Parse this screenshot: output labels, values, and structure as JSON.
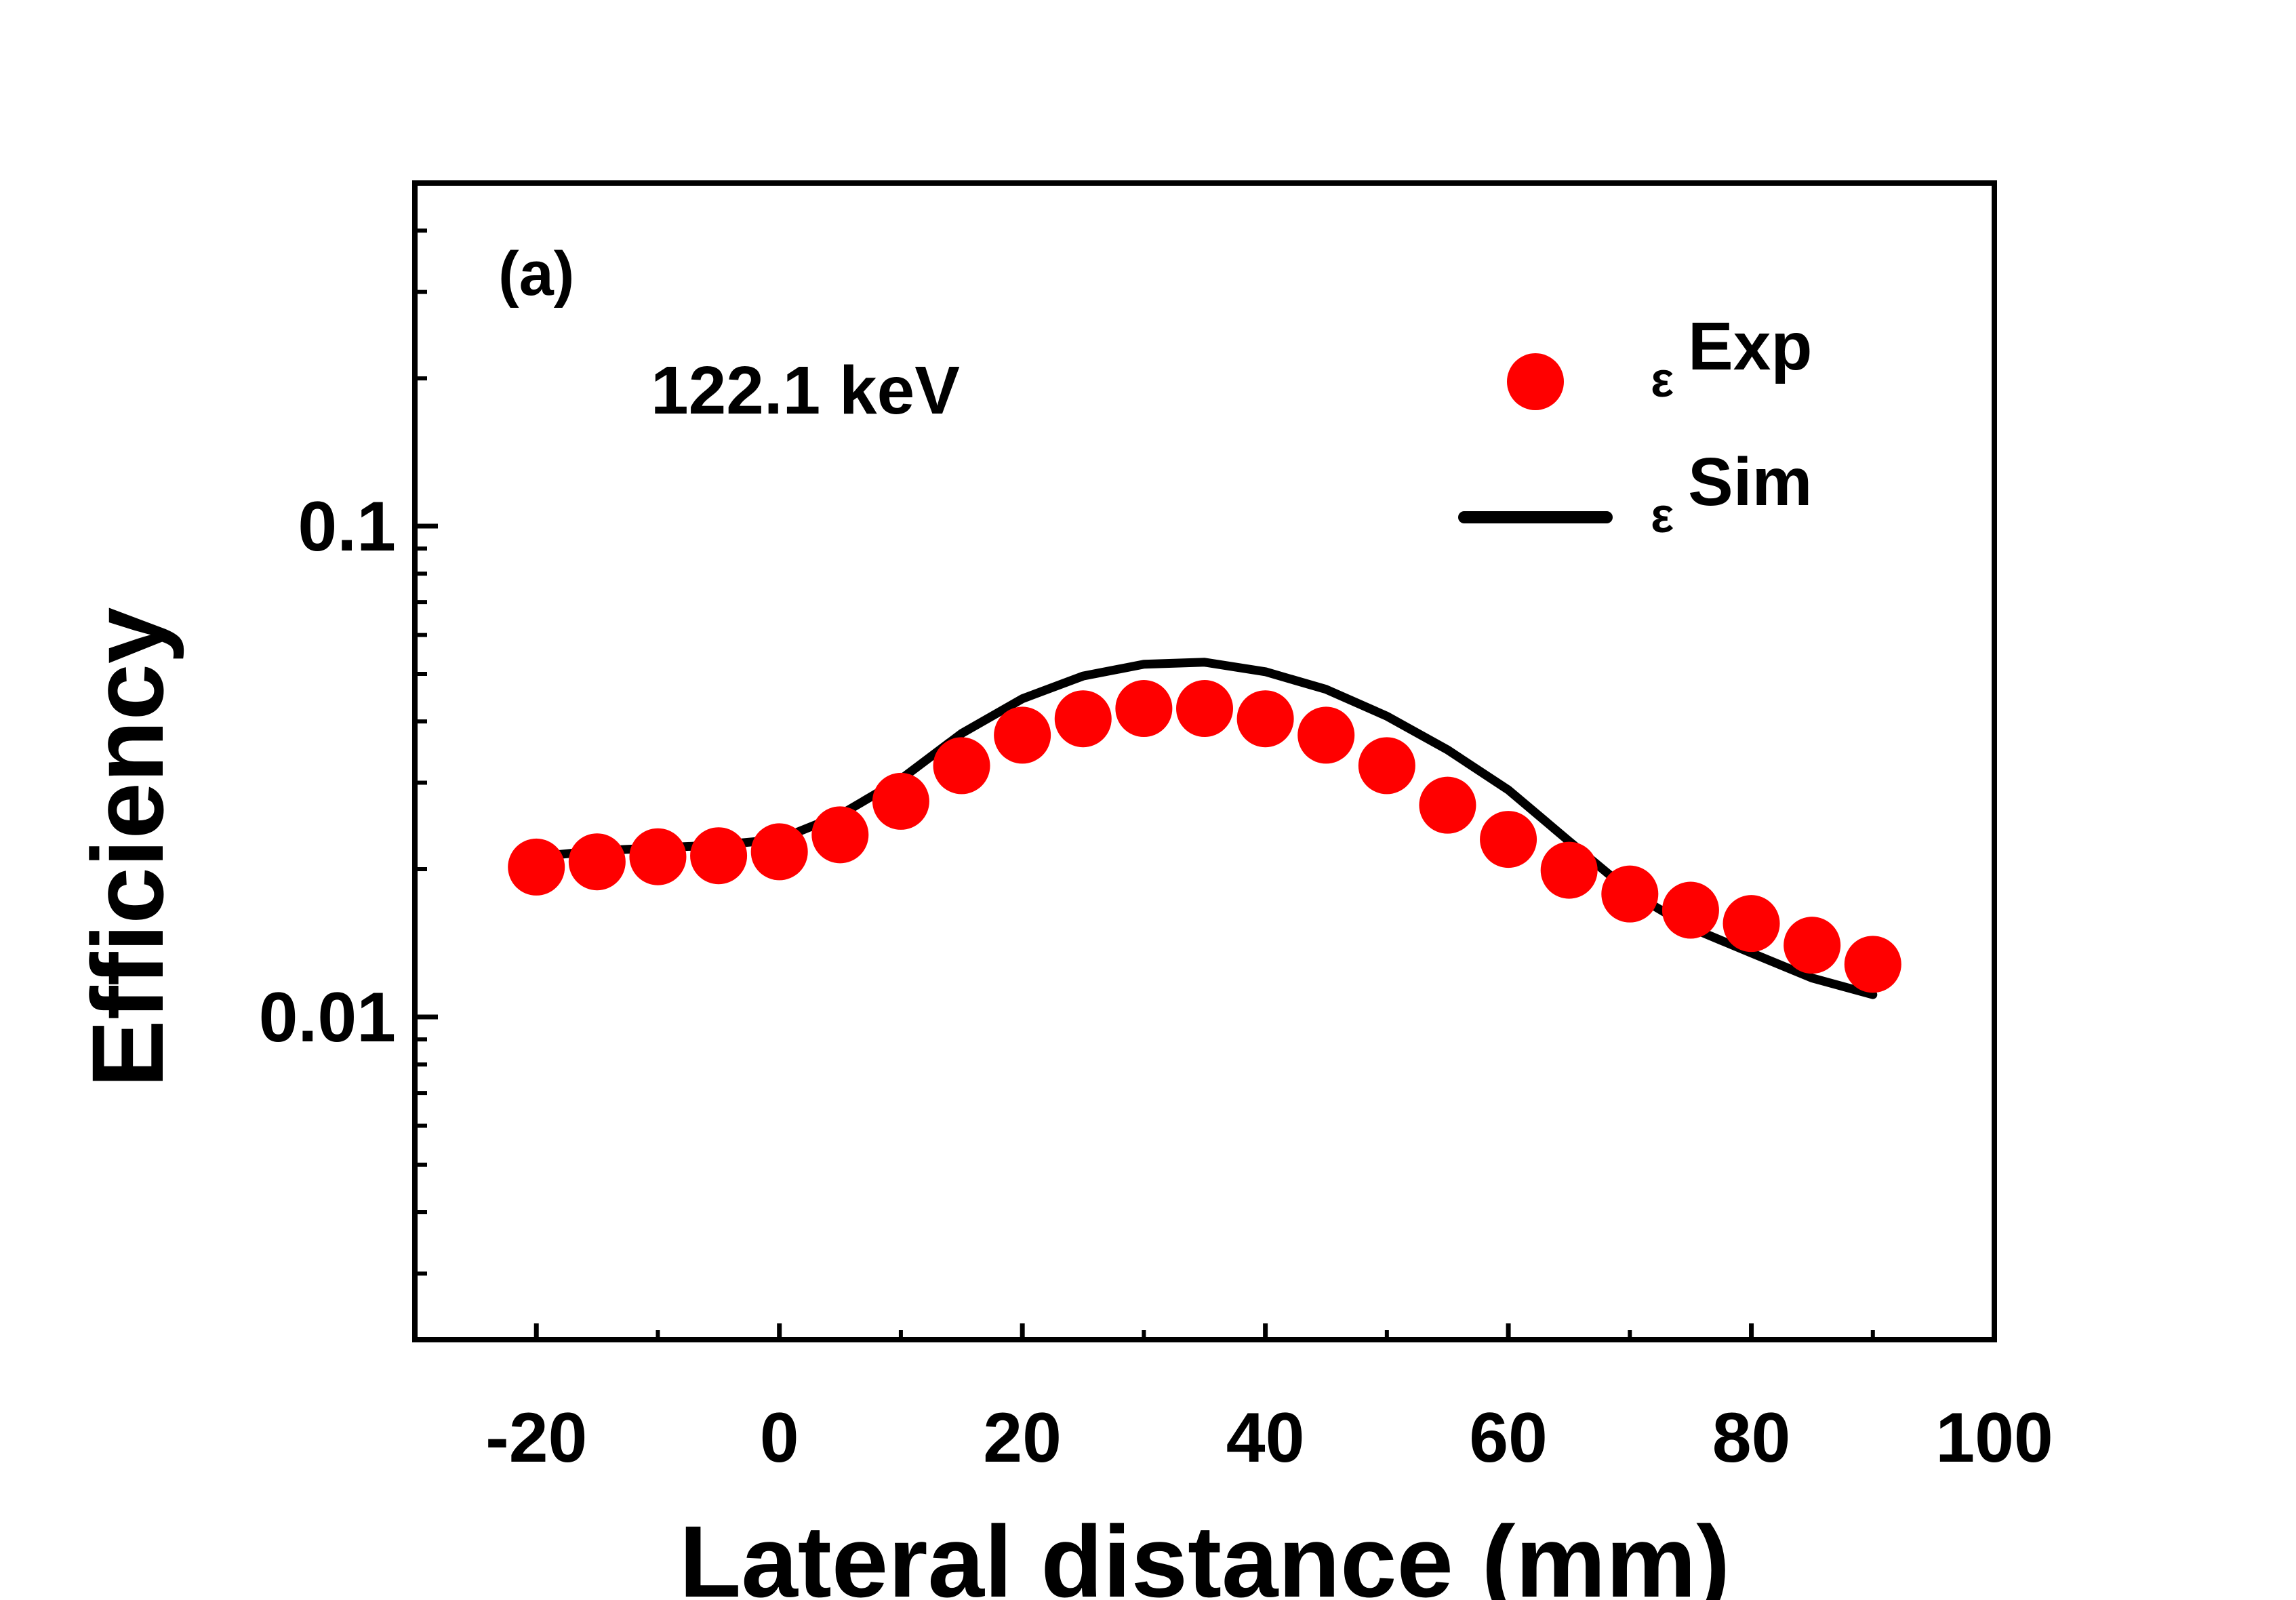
{
  "chart_data": {
    "type": "scatter",
    "panel_label": "(a)",
    "annotation": "122.1 keV",
    "xlabel": "Lateral distance (mm)",
    "ylabel": "Efficiency",
    "xlim": [
      -30,
      100
    ],
    "ylim": [
      0.0022,
      0.5
    ],
    "yscale": "log",
    "x_ticks": [
      -20,
      0,
      20,
      40,
      60,
      80,
      100
    ],
    "x_tick_labels": [
      "-20",
      "0",
      "20",
      "40",
      "60",
      "80",
      "100"
    ],
    "y_ticks": [
      0.01,
      0.1
    ],
    "y_tick_labels": [
      "0.01",
      "0.1"
    ],
    "legend_position": "top-right",
    "series": [
      {
        "name": "εExp",
        "legend_base": "ε",
        "legend_sup": "Exp",
        "kind": "markers",
        "color": "#ff0000",
        "x": [
          -20,
          -15,
          -10,
          -5,
          0,
          5,
          10,
          15,
          20,
          25,
          30,
          35,
          40,
          45,
          50,
          55,
          60,
          65,
          70,
          75,
          80,
          85,
          90
        ],
        "y": [
          0.0202,
          0.0207,
          0.0212,
          0.0213,
          0.0217,
          0.0235,
          0.0275,
          0.0325,
          0.0375,
          0.0405,
          0.0425,
          0.0425,
          0.0405,
          0.0375,
          0.0325,
          0.027,
          0.023,
          0.0199,
          0.0178,
          0.0165,
          0.0155,
          0.014,
          0.0128
        ]
      },
      {
        "name": "εSim",
        "legend_base": "ε",
        "legend_sup": "Sim",
        "kind": "line",
        "color": "#000000",
        "x": [
          -20,
          -15,
          -10,
          -5,
          0,
          5,
          10,
          15,
          20,
          25,
          30,
          35,
          40,
          45,
          50,
          55,
          60,
          65,
          70,
          75,
          80,
          85,
          90
        ],
        "y": [
          0.0212,
          0.0218,
          0.0221,
          0.0224,
          0.023,
          0.0258,
          0.0305,
          0.0378,
          0.0445,
          0.0495,
          0.0523,
          0.0528,
          0.0505,
          0.0465,
          0.041,
          0.035,
          0.029,
          0.0228,
          0.018,
          0.0152,
          0.0135,
          0.012,
          0.0111
        ]
      }
    ]
  }
}
